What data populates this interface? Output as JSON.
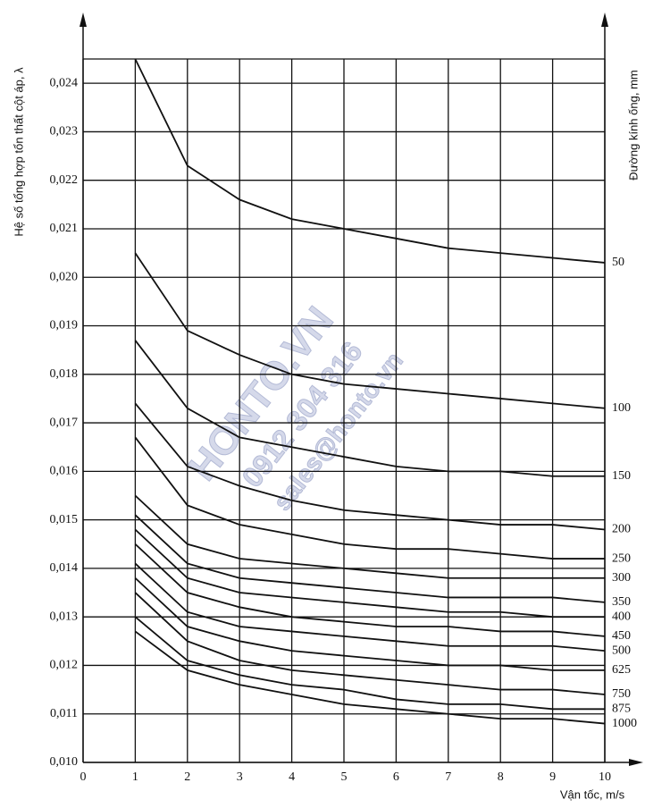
{
  "chart_data": {
    "type": "line",
    "y_label": "Hệ số tổng hợp tổn thất cột áp, λ",
    "y2_label": "Đường kính ống, mm",
    "x_label": "Vận tốc, m/s",
    "watermark": [
      "HONTO.VN",
      "0912 304 316",
      "sales@honto.vn"
    ],
    "x": [
      1,
      2,
      3,
      4,
      5,
      6,
      7,
      8,
      9,
      10
    ],
    "xlim": [
      0,
      10
    ],
    "xticks": [
      0,
      1,
      2,
      3,
      4,
      5,
      6,
      7,
      8,
      9,
      10
    ],
    "ylim": [
      0.01,
      0.0245
    ],
    "yticks": [
      {
        "value": 0.01,
        "label": "0,010"
      },
      {
        "value": 0.011,
        "label": "0,011"
      },
      {
        "value": 0.012,
        "label": "0,012"
      },
      {
        "value": 0.013,
        "label": "0,013"
      },
      {
        "value": 0.014,
        "label": "0,014"
      },
      {
        "value": 0.015,
        "label": "0,015"
      },
      {
        "value": 0.016,
        "label": "0,016"
      },
      {
        "value": 0.017,
        "label": "0,017"
      },
      {
        "value": 0.018,
        "label": "0,018"
      },
      {
        "value": 0.019,
        "label": "0,019"
      },
      {
        "value": 0.02,
        "label": "0,020"
      },
      {
        "value": 0.021,
        "label": "0,021"
      },
      {
        "value": 0.022,
        "label": "0,022"
      },
      {
        "value": 0.023,
        "label": "0,023"
      },
      {
        "value": 0.024,
        "label": "0,024"
      }
    ],
    "grid": true,
    "color": "#111111",
    "series": [
      {
        "name": "50",
        "values": [
          0.0245,
          0.0223,
          0.0216,
          0.0212,
          0.021,
          0.0208,
          0.0206,
          0.0205,
          0.0204,
          0.0203
        ]
      },
      {
        "name": "100",
        "values": [
          0.0205,
          0.0189,
          0.0184,
          0.018,
          0.0178,
          0.0177,
          0.0176,
          0.0175,
          0.0174,
          0.0173
        ]
      },
      {
        "name": "150",
        "values": [
          0.0187,
          0.0173,
          0.0167,
          0.0165,
          0.0163,
          0.0161,
          0.016,
          0.016,
          0.0159,
          0.0159
        ]
      },
      {
        "name": "200",
        "values": [
          0.0174,
          0.0161,
          0.0157,
          0.0154,
          0.0152,
          0.0151,
          0.015,
          0.0149,
          0.0149,
          0.0148
        ]
      },
      {
        "name": "250",
        "values": [
          0.0167,
          0.0153,
          0.0149,
          0.0147,
          0.0145,
          0.0144,
          0.0144,
          0.0143,
          0.0142,
          0.0142
        ]
      },
      {
        "name": "300",
        "values": [
          0.0155,
          0.0145,
          0.0142,
          0.0141,
          0.014,
          0.0139,
          0.0138,
          0.0138,
          0.0138,
          0.0138
        ]
      },
      {
        "name": "350",
        "values": [
          0.0151,
          0.0141,
          0.0138,
          0.0137,
          0.0136,
          0.0135,
          0.0134,
          0.0134,
          0.0134,
          0.0133
        ]
      },
      {
        "name": "400",
        "values": [
          0.0148,
          0.0138,
          0.0135,
          0.0134,
          0.0133,
          0.0132,
          0.0131,
          0.0131,
          0.013,
          0.013
        ]
      },
      {
        "name": "450",
        "values": [
          0.0145,
          0.0135,
          0.0132,
          0.013,
          0.0129,
          0.0128,
          0.0128,
          0.0127,
          0.0127,
          0.0126
        ]
      },
      {
        "name": "500",
        "values": [
          0.0141,
          0.0131,
          0.0128,
          0.0127,
          0.0126,
          0.0125,
          0.0124,
          0.0124,
          0.0124,
          0.0123
        ]
      },
      {
        "name": "625",
        "values": [
          0.0138,
          0.0128,
          0.0125,
          0.0123,
          0.0122,
          0.0121,
          0.012,
          0.012,
          0.0119,
          0.0119
        ]
      },
      {
        "name": "750",
        "values": [
          0.0135,
          0.0125,
          0.0121,
          0.0119,
          0.0118,
          0.0117,
          0.0116,
          0.0115,
          0.0115,
          0.0114
        ]
      },
      {
        "name": "875",
        "values": [
          0.013,
          0.0121,
          0.0118,
          0.0116,
          0.0115,
          0.0113,
          0.0112,
          0.0112,
          0.0111,
          0.0111
        ]
      },
      {
        "name": "1000",
        "values": [
          0.0127,
          0.0119,
          0.0116,
          0.0114,
          0.0112,
          0.0111,
          0.011,
          0.0109,
          0.0109,
          0.0108
        ]
      }
    ]
  }
}
